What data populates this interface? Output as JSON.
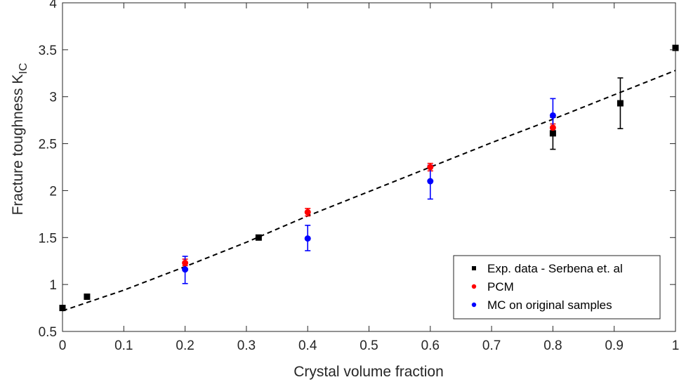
{
  "chart_data": {
    "type": "scatter",
    "xlabel": "Crystal volume fraction",
    "ylabel": "Fracture toughness K",
    "ylabel_subscript": "IC",
    "xlim": [
      0,
      1
    ],
    "ylim": [
      0.5,
      4
    ],
    "xticks": [
      "0",
      "0.1",
      "0.2",
      "0.3",
      "0.4",
      "0.5",
      "0.6",
      "0.7",
      "0.8",
      "0.9",
      "1"
    ],
    "yticks": [
      "0.5",
      "1",
      "1.5",
      "2",
      "2.5",
      "3",
      "3.5",
      "4"
    ],
    "grid": false,
    "legend_position": "bottom-right",
    "series": [
      {
        "name": "Exp. data - Serbena et. al",
        "color": "#000000",
        "marker": "square",
        "points": [
          {
            "x": 0.0,
            "y": 0.75
          },
          {
            "x": 0.04,
            "y": 0.87
          },
          {
            "x": 0.32,
            "y": 1.5
          },
          {
            "x": 0.8,
            "y": 2.61,
            "err_low": 2.44,
            "err_high": 2.78
          },
          {
            "x": 0.91,
            "y": 2.93,
            "err_low": 2.66,
            "err_high": 3.2
          },
          {
            "x": 1.0,
            "y": 3.52
          }
        ]
      },
      {
        "name": "PCM",
        "color": "#ff0000",
        "marker": "circle",
        "points": [
          {
            "x": 0.2,
            "y": 1.23,
            "err_low": 1.2,
            "err_high": 1.27
          },
          {
            "x": 0.4,
            "y": 1.77,
            "err_low": 1.73,
            "err_high": 1.81
          },
          {
            "x": 0.6,
            "y": 2.25,
            "err_low": 2.21,
            "err_high": 2.29
          },
          {
            "x": 0.8,
            "y": 2.67,
            "err_low": 2.63,
            "err_high": 2.71
          }
        ]
      },
      {
        "name": "MC on original samples",
        "color": "#0000ff",
        "marker": "circle",
        "points": [
          {
            "x": 0.2,
            "y": 1.16,
            "err_low": 1.01,
            "err_high": 1.3
          },
          {
            "x": 0.4,
            "y": 1.49,
            "err_low": 1.36,
            "err_high": 1.63
          },
          {
            "x": 0.6,
            "y": 2.1,
            "err_low": 1.91,
            "err_high": 2.27
          },
          {
            "x": 0.8,
            "y": 2.8,
            "err_low": 2.62,
            "err_high": 2.98
          }
        ]
      }
    ],
    "fit_line": {
      "color": "#000000",
      "style": "dashed",
      "points": [
        {
          "x": 0.0,
          "y": 0.72
        },
        {
          "x": 0.1,
          "y": 0.94
        },
        {
          "x": 0.2,
          "y": 1.19
        },
        {
          "x": 0.3,
          "y": 1.45
        },
        {
          "x": 0.4,
          "y": 1.73
        },
        {
          "x": 0.5,
          "y": 1.99
        },
        {
          "x": 0.6,
          "y": 2.25
        },
        {
          "x": 0.7,
          "y": 2.51
        },
        {
          "x": 0.8,
          "y": 2.76
        },
        {
          "x": 0.9,
          "y": 3.02
        },
        {
          "x": 1.0,
          "y": 3.28
        }
      ]
    }
  }
}
